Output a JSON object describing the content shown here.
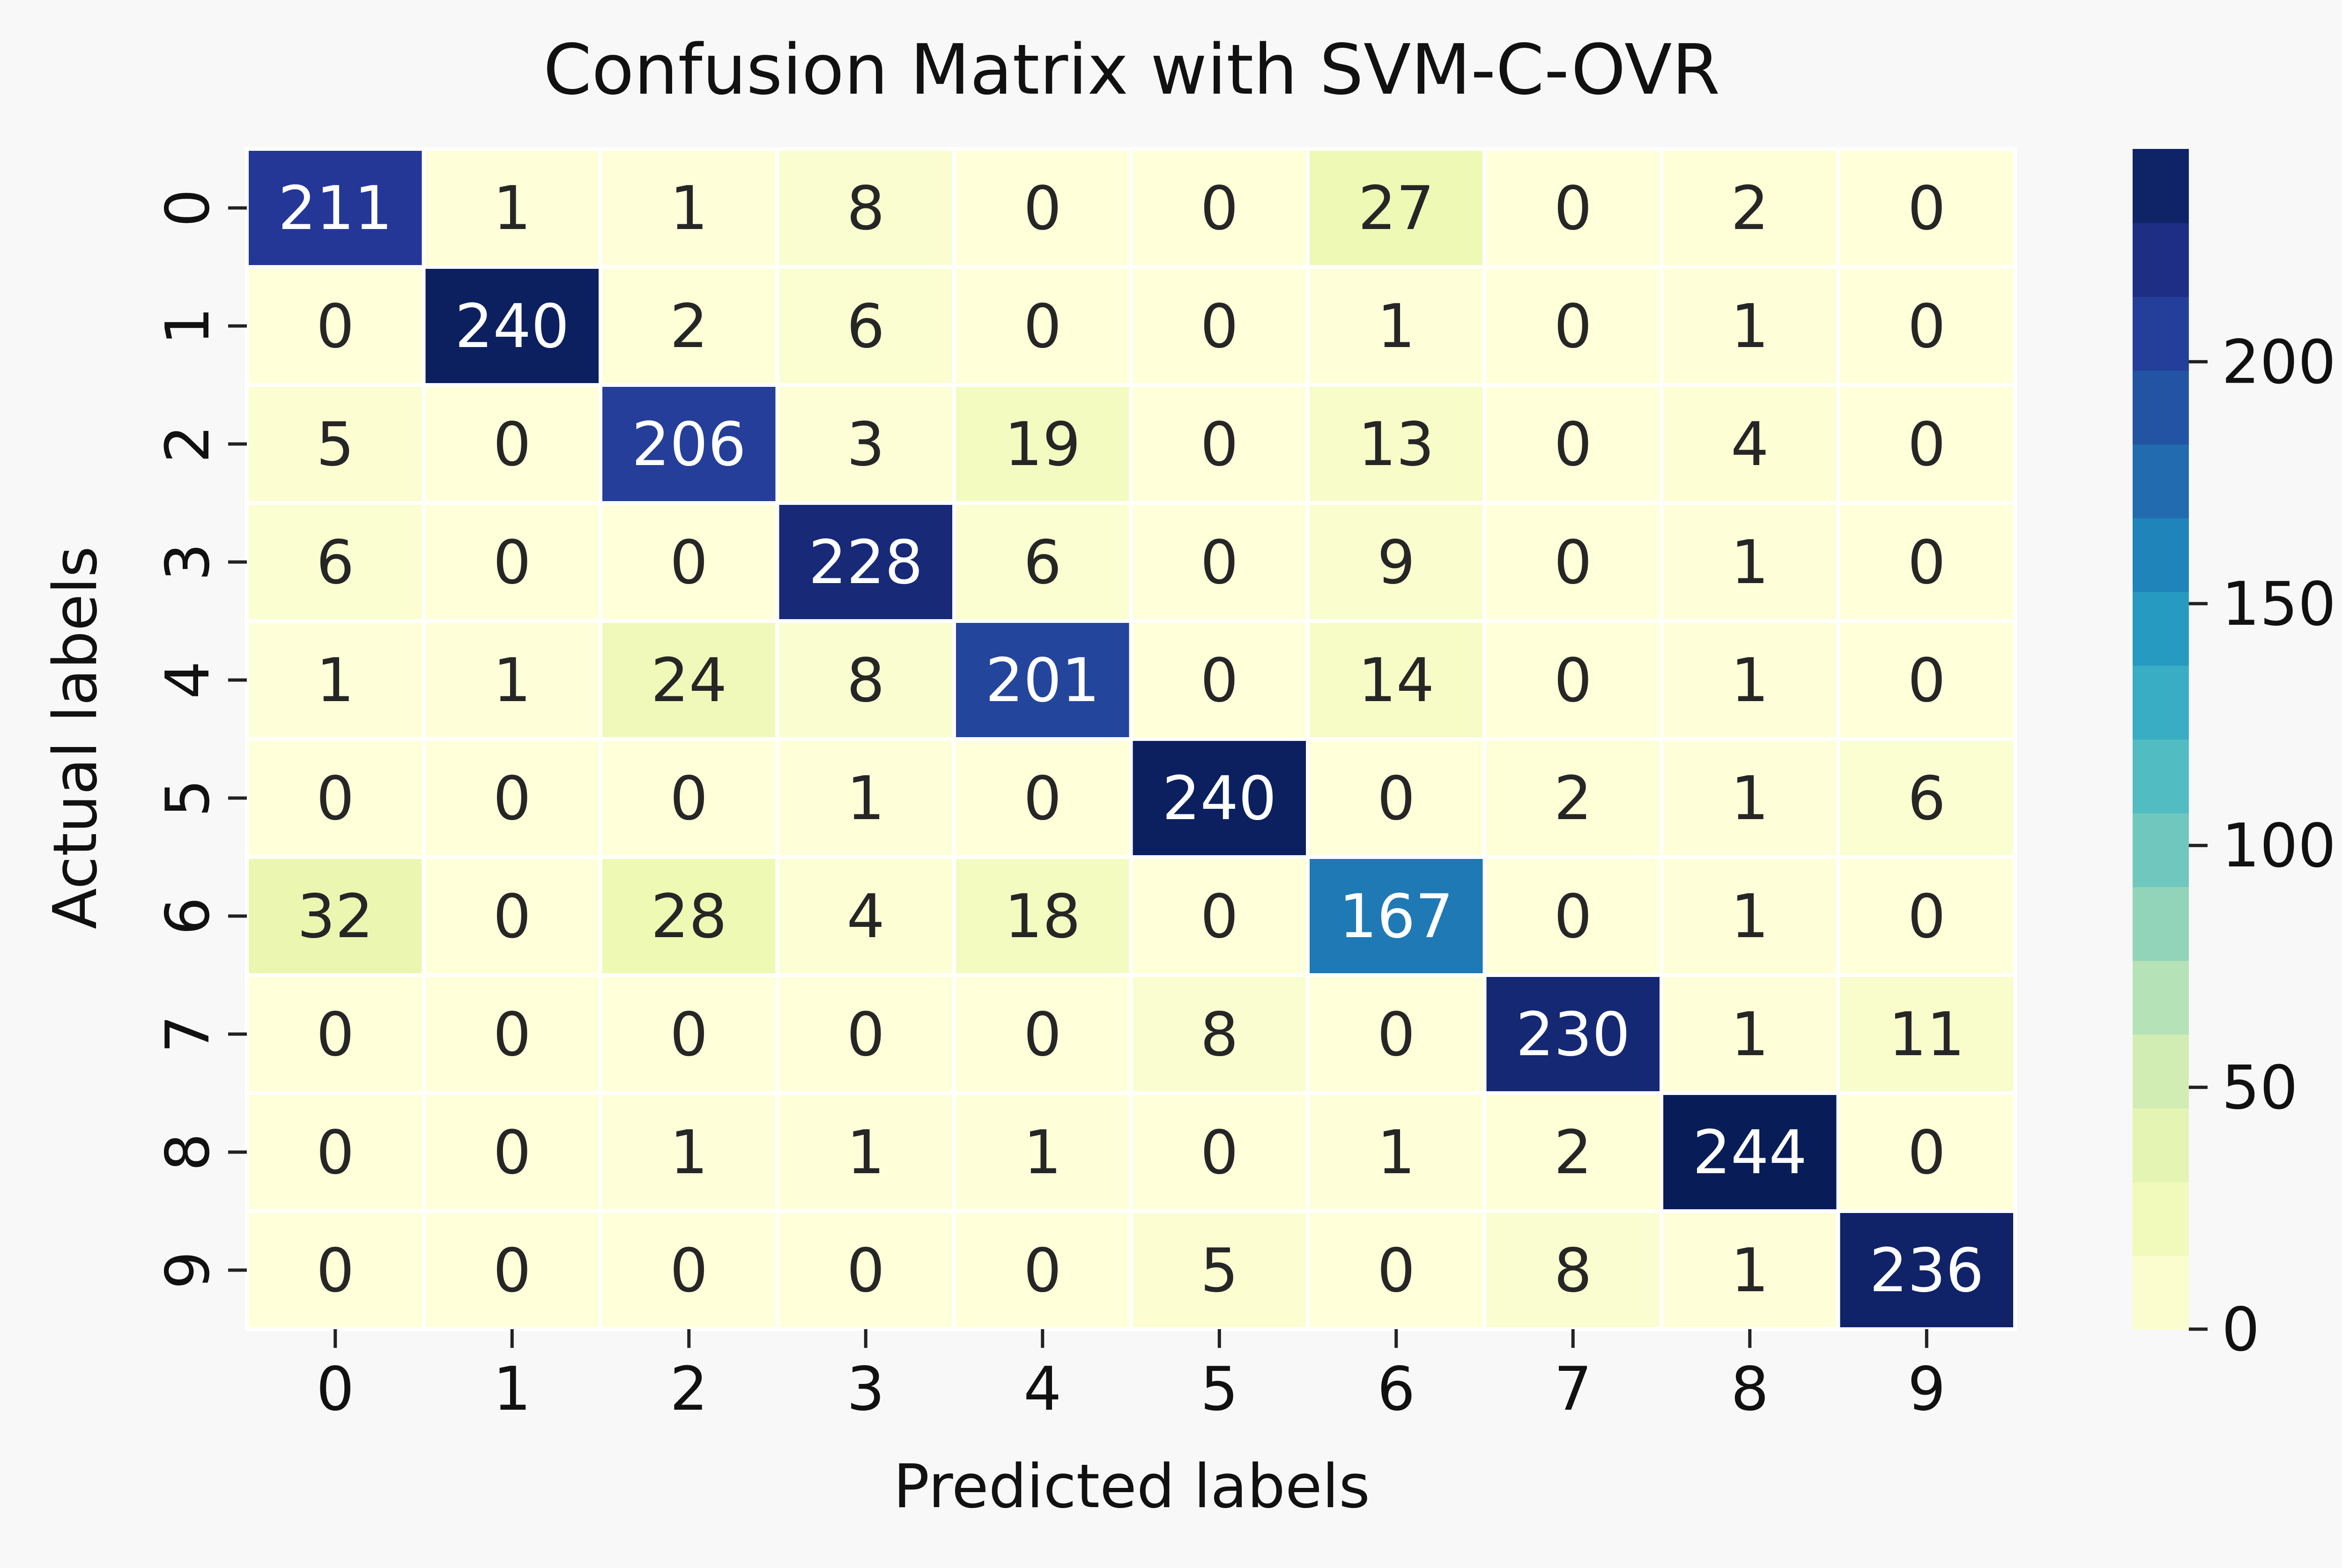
{
  "chart_data": {
    "type": "heatmap",
    "title": "Confusion Matrix with SVM-C-OVR",
    "xlabel": "Predicted labels",
    "ylabel": "Actual labels",
    "x_categories": [
      "0",
      "1",
      "2",
      "3",
      "4",
      "5",
      "6",
      "7",
      "8",
      "9"
    ],
    "y_categories": [
      "0",
      "1",
      "2",
      "3",
      "4",
      "5",
      "6",
      "7",
      "8",
      "9"
    ],
    "values": [
      [
        211,
        1,
        1,
        8,
        0,
        0,
        27,
        0,
        2,
        0
      ],
      [
        0,
        240,
        2,
        6,
        0,
        0,
        1,
        0,
        1,
        0
      ],
      [
        5,
        0,
        206,
        3,
        19,
        0,
        13,
        0,
        4,
        0
      ],
      [
        6,
        0,
        0,
        228,
        6,
        0,
        9,
        0,
        1,
        0
      ],
      [
        1,
        1,
        24,
        8,
        201,
        0,
        14,
        0,
        1,
        0
      ],
      [
        0,
        0,
        0,
        1,
        0,
        240,
        0,
        2,
        1,
        6
      ],
      [
        32,
        0,
        28,
        4,
        18,
        0,
        167,
        0,
        1,
        0
      ],
      [
        0,
        0,
        0,
        0,
        0,
        8,
        0,
        230,
        1,
        11
      ],
      [
        0,
        0,
        1,
        1,
        1,
        0,
        1,
        2,
        244,
        0
      ],
      [
        0,
        0,
        0,
        0,
        0,
        5,
        0,
        8,
        1,
        236
      ]
    ],
    "colormap": "YlGnBu",
    "colorbar": {
      "range": [
        0,
        244
      ],
      "ticks": [
        0,
        50,
        100,
        150,
        200
      ]
    },
    "grid": false,
    "legend": "colorbar-right"
  }
}
